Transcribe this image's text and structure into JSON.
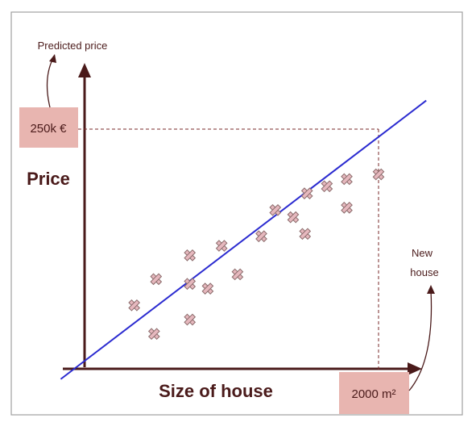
{
  "chart_data": {
    "type": "scatter",
    "title": "",
    "ylabel": "Price",
    "xlabel": "Size of house",
    "annotations": {
      "y_axis_note": "Predicted price",
      "x_note_line1": "New",
      "x_note_line2": "house",
      "predicted_value": "250k €",
      "new_house_value": "2000 m²"
    },
    "x_ticks_shown": false,
    "y_ticks_shown": false,
    "grid": false,
    "points": [
      {
        "x": 0.25,
        "y": 0.26
      },
      {
        "x": 0.35,
        "y": 0.14
      },
      {
        "x": 0.36,
        "y": 0.37
      },
      {
        "x": 0.53,
        "y": 0.2
      },
      {
        "x": 0.53,
        "y": 0.35
      },
      {
        "x": 0.53,
        "y": 0.47
      },
      {
        "x": 0.62,
        "y": 0.33
      },
      {
        "x": 0.69,
        "y": 0.51
      },
      {
        "x": 0.77,
        "y": 0.39
      },
      {
        "x": 0.89,
        "y": 0.55
      },
      {
        "x": 0.96,
        "y": 0.66
      },
      {
        "x": 1.05,
        "y": 0.63
      },
      {
        "x": 1.12,
        "y": 0.73
      },
      {
        "x": 1.11,
        "y": 0.56
      },
      {
        "x": 1.22,
        "y": 0.76
      },
      {
        "x": 1.32,
        "y": 0.79
      },
      {
        "x": 1.32,
        "y": 0.67
      },
      {
        "x": 1.48,
        "y": 0.81
      }
    ],
    "regression_line": {
      "x_start": -0.12,
      "y_start": -0.05,
      "x_end": 1.72,
      "y_end": 1.12
    },
    "prediction": {
      "x": 1.48,
      "y": 1.0
    },
    "xlim": [
      0,
      1.72
    ],
    "ylim": [
      0,
      1.32
    ],
    "colors": {
      "frame": "#a0a0a0",
      "axis": "#4a1a1a",
      "line": "#2b2bd0",
      "marker_fill": "#e6b8be",
      "marker_stroke": "#8a6a6a",
      "dashed": "#7a2a2a",
      "label_box": "#e8b5b0"
    }
  }
}
